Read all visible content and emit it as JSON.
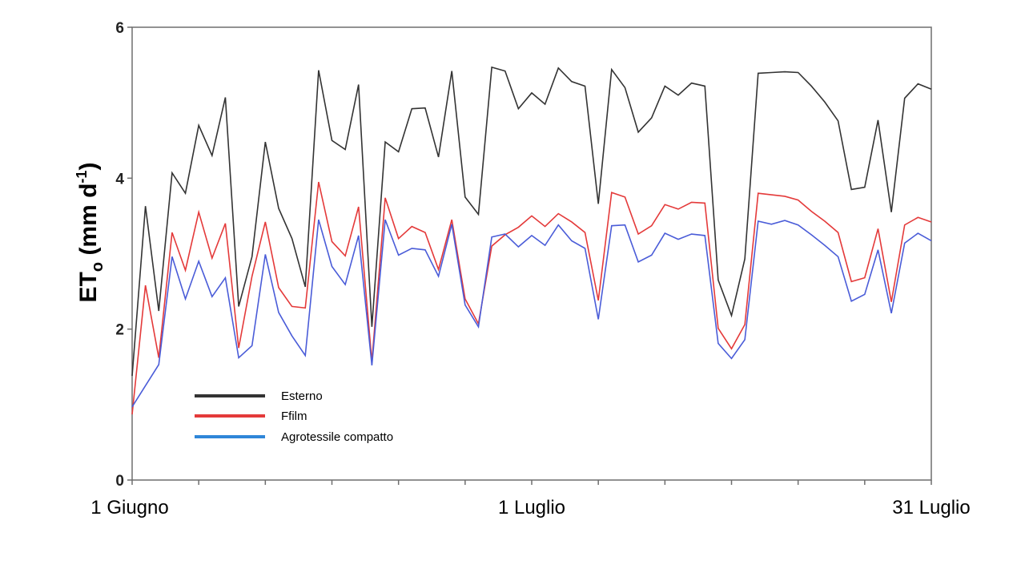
{
  "chart_data": {
    "type": "line",
    "x_unit": "day",
    "x_start": "1 Giugno",
    "days": [
      1,
      2,
      3,
      4,
      5,
      6,
      7,
      8,
      9,
      10,
      11,
      12,
      13,
      14,
      15,
      16,
      17,
      18,
      19,
      20,
      21,
      22,
      23,
      24,
      25,
      26,
      27,
      28,
      29,
      30,
      31,
      32,
      33,
      34,
      35,
      36,
      37,
      38,
      39,
      40,
      41,
      42,
      43,
      44,
      45,
      46,
      47,
      48,
      49,
      50,
      51,
      52,
      53,
      54,
      55,
      56,
      57,
      58,
      59,
      60,
      61
    ],
    "x_tick_labels": [
      {
        "day": 1,
        "label": "1 Giugno"
      },
      {
        "day": 31,
        "label": "1 Luglio"
      },
      {
        "day": 61,
        "label": "31 Luglio"
      }
    ],
    "x_minor_ticks": [
      6,
      11,
      16,
      21,
      26,
      36,
      41,
      46,
      51,
      56
    ],
    "ylabel": {
      "main": "ET",
      "sub": "o",
      "unit_open": " (mm d",
      "sup": "-1",
      "unit_close": ")"
    },
    "ylim": [
      0,
      6
    ],
    "y_ticks": [
      0,
      2,
      4,
      6
    ],
    "grid": false,
    "legend_position": "lower-left",
    "series": [
      {
        "name": "Esterno",
        "color": "#333333",
        "values": [
          1.38,
          3.63,
          2.24,
          4.07,
          3.8,
          4.7,
          4.3,
          5.07,
          2.3,
          2.96,
          4.48,
          3.6,
          3.2,
          2.56,
          5.43,
          4.5,
          4.38,
          5.24,
          2.03,
          4.48,
          4.35,
          4.92,
          4.93,
          4.28,
          5.42,
          3.75,
          3.52,
          5.47,
          5.42,
          4.92,
          5.13,
          4.98,
          5.46,
          5.28,
          5.22,
          3.66,
          5.44,
          5.2,
          4.61,
          4.8,
          5.22,
          5.1,
          5.26,
          5.22,
          2.65,
          2.18,
          2.93,
          5.39,
          5.4,
          5.41,
          5.4,
          5.22,
          5.01,
          4.76,
          3.85,
          3.88,
          4.77,
          3.55,
          5.06,
          5.25,
          5.18
        ]
      },
      {
        "name": "Ffilm",
        "color": "#e43a3a",
        "values": [
          0.87,
          2.58,
          1.62,
          3.28,
          2.78,
          3.55,
          2.94,
          3.4,
          1.75,
          2.7,
          3.42,
          2.55,
          2.3,
          2.28,
          3.95,
          3.16,
          2.97,
          3.62,
          1.57,
          3.74,
          3.2,
          3.36,
          3.28,
          2.79,
          3.45,
          2.4,
          2.07,
          3.1,
          3.25,
          3.35,
          3.5,
          3.36,
          3.53,
          3.42,
          3.28,
          2.38,
          3.81,
          3.75,
          3.26,
          3.37,
          3.65,
          3.59,
          3.68,
          3.67,
          2.01,
          1.74,
          2.06,
          3.8,
          3.78,
          3.76,
          3.71,
          3.56,
          3.43,
          3.28,
          2.63,
          2.68,
          3.33,
          2.36,
          3.38,
          3.48,
          3.42
        ]
      },
      {
        "name": "Agrotessile compatto",
        "color": "#4a5cd8",
        "values": [
          0.97,
          1.25,
          1.53,
          2.96,
          2.4,
          2.9,
          2.43,
          2.68,
          1.62,
          1.78,
          2.99,
          2.22,
          1.91,
          1.65,
          3.45,
          2.83,
          2.59,
          3.24,
          1.52,
          3.45,
          2.98,
          3.07,
          3.05,
          2.7,
          3.39,
          2.32,
          2.03,
          3.22,
          3.26,
          3.09,
          3.24,
          3.11,
          3.38,
          3.17,
          3.07,
          2.13,
          3.37,
          3.38,
          2.89,
          2.98,
          3.27,
          3.19,
          3.26,
          3.24,
          1.81,
          1.61,
          1.86,
          3.43,
          3.39,
          3.44,
          3.38,
          3.25,
          3.11,
          2.96,
          2.37,
          2.46,
          3.05,
          2.21,
          3.14,
          3.27,
          3.17
        ]
      }
    ]
  }
}
